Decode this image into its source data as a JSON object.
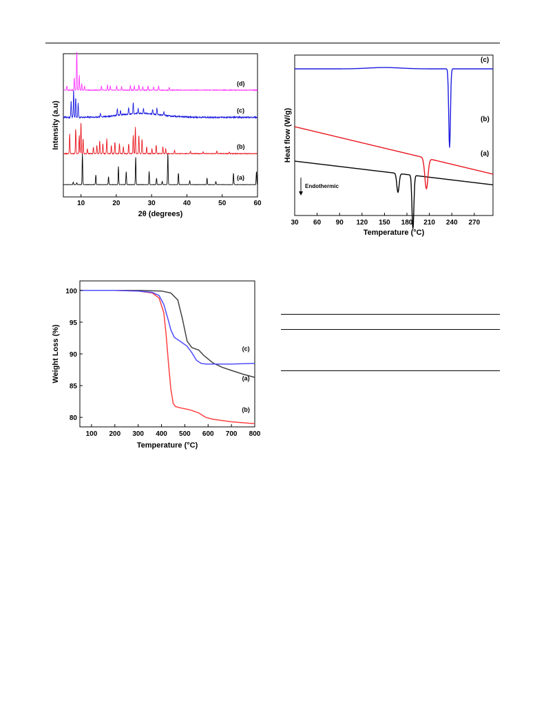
{
  "chart_data": [
    {
      "type": "line",
      "xlabel": "2θ (degrees)",
      "ylabel": "Intensity (a.u)",
      "xlim": [
        5,
        60
      ],
      "xticks": [
        10,
        20,
        30,
        40,
        50,
        60
      ],
      "grid": false,
      "offsets": [
        0,
        1,
        2,
        3
      ],
      "series": [
        {
          "name": "(a)",
          "color": "#000000",
          "baseline": 0.08,
          "noise": 0.004,
          "peaks": [
            [
              7.8,
              0.08
            ],
            [
              8.8,
              0.06
            ],
            [
              10.4,
              0.95
            ],
            [
              14.2,
              0.3
            ],
            [
              17.8,
              0.25
            ],
            [
              20.6,
              0.55
            ],
            [
              22.8,
              0.4
            ],
            [
              25.5,
              0.85
            ],
            [
              29.3,
              0.4
            ],
            [
              31.4,
              0.2
            ],
            [
              33.0,
              0.1
            ],
            [
              34.6,
              0.95
            ],
            [
              37.6,
              0.35
            ],
            [
              40.8,
              0.12
            ],
            [
              45.7,
              0.2
            ],
            [
              48.2,
              0.1
            ],
            [
              53.2,
              0.35
            ],
            [
              59.7,
              0.4
            ]
          ]
        },
        {
          "name": "(b)",
          "color": "#e8141c",
          "baseline": 0.06,
          "noise": 0.01,
          "peaks": [
            [
              6.8,
              0.6
            ],
            [
              8.5,
              0.75
            ],
            [
              9.5,
              0.55
            ],
            [
              10.0,
              0.95
            ],
            [
              10.6,
              0.45
            ],
            [
              11.8,
              0.15
            ],
            [
              13.5,
              0.2
            ],
            [
              14.5,
              0.25
            ],
            [
              15.3,
              0.4
            ],
            [
              16.2,
              0.3
            ],
            [
              17.3,
              0.45
            ],
            [
              18.6,
              0.25
            ],
            [
              19.6,
              0.35
            ],
            [
              20.9,
              0.3
            ],
            [
              22.0,
              0.2
            ],
            [
              23.5,
              0.3
            ],
            [
              24.8,
              0.55
            ],
            [
              25.4,
              0.8
            ],
            [
              26.4,
              0.55
            ],
            [
              27.3,
              0.45
            ],
            [
              28.6,
              0.2
            ],
            [
              30.1,
              0.15
            ],
            [
              31.3,
              0.25
            ],
            [
              33.2,
              0.2
            ],
            [
              34.0,
              0.15
            ],
            [
              36.5,
              0.1
            ],
            [
              41.0,
              0.08
            ],
            [
              44.6,
              0.06
            ],
            [
              48.5,
              0.08
            ],
            [
              52.0,
              0.05
            ]
          ]
        },
        {
          "name": "(c)",
          "color": "#1a1ae0",
          "baseline": 0.2,
          "noise": 0.02,
          "peaks": [
            [
              7.2,
              0.5
            ],
            [
              7.9,
              0.85
            ],
            [
              8.5,
              0.6
            ],
            [
              9.2,
              0.45
            ],
            [
              15.5,
              0.1
            ],
            [
              20.3,
              0.2
            ],
            [
              21.2,
              0.15
            ],
            [
              23.5,
              0.2
            ],
            [
              24.8,
              0.35
            ],
            [
              26.2,
              0.15
            ],
            [
              27.7,
              0.15
            ],
            [
              30.3,
              0.15
            ],
            [
              31.5,
              0.2
            ],
            [
              33.5,
              0.1
            ]
          ]
        },
        {
          "name": "(d)",
          "color": "#ff33ff",
          "baseline": 0.05,
          "noise": 0.008,
          "peaks": [
            [
              6.0,
              0.1
            ],
            [
              8.1,
              0.3
            ],
            [
              8.8,
              1.0
            ],
            [
              9.5,
              0.35
            ],
            [
              10.2,
              0.15
            ],
            [
              11.0,
              0.1
            ],
            [
              15.8,
              0.1
            ],
            [
              17.5,
              0.12
            ],
            [
              18.3,
              0.1
            ],
            [
              20.1,
              0.1
            ],
            [
              21.5,
              0.08
            ],
            [
              24.0,
              0.12
            ],
            [
              25.1,
              0.1
            ],
            [
              26.4,
              0.12
            ],
            [
              27.5,
              0.08
            ],
            [
              29.0,
              0.1
            ],
            [
              30.6,
              0.08
            ],
            [
              32.0,
              0.1
            ],
            [
              35.0,
              0.06
            ]
          ]
        }
      ]
    },
    {
      "type": "line",
      "xlabel": "Temperature (°C)",
      "ylabel": "Heat flow (W/g)",
      "xlim": [
        30,
        295
      ],
      "xticks": [
        30,
        60,
        90,
        120,
        150,
        180,
        210,
        240,
        270
      ],
      "grid": false,
      "annotation": "Endothermic",
      "series": [
        {
          "name": "(a)",
          "color": "#000000",
          "baseline": 0.0,
          "slope": 0.01,
          "dips": [
            [
              168,
              0.21,
              2.2
            ],
            [
              188,
              0.6,
              1.8
            ]
          ]
        },
        {
          "name": "(b)",
          "color": "#e8141c",
          "baseline": 0.5,
          "slope": 0.02,
          "dips": [
            [
              206,
              0.34,
              3.0
            ]
          ]
        },
        {
          "name": "(c)",
          "color": "#1a1ae0",
          "baseline": 1.3,
          "slope": 0.0,
          "dips": [
            [
              237,
              0.88,
              1.6
            ]
          ]
        }
      ]
    },
    {
      "type": "line",
      "xlabel": "Temperature (°C)",
      "ylabel": "Weight Loss (%)",
      "xlim": [
        50,
        800
      ],
      "ylim": [
        78.5,
        101.5
      ],
      "xticks": [
        100,
        200,
        300,
        400,
        500,
        600,
        700,
        800
      ],
      "yticks": [
        80,
        85,
        90,
        95,
        100
      ],
      "grid": false,
      "series": [
        {
          "name": "(a)",
          "color": "#404040",
          "x": [
            50,
            200,
            300,
            400,
            440,
            470,
            490,
            510,
            530,
            560,
            580,
            620,
            660,
            700,
            750,
            800
          ],
          "y": [
            100,
            100,
            100,
            99.9,
            99.6,
            98.5,
            95.5,
            92.0,
            91.0,
            90.6,
            89.8,
            88.6,
            87.9,
            87.4,
            86.8,
            86.3
          ]
        },
        {
          "name": "(b)",
          "color": "#ff4040",
          "x": [
            50,
            200,
            300,
            360,
            390,
            410,
            420,
            430,
            440,
            450,
            460,
            480,
            520,
            560,
            590,
            620,
            700,
            800
          ],
          "y": [
            100,
            100,
            99.9,
            99.6,
            98.8,
            96.5,
            93.0,
            88.5,
            84.5,
            82.2,
            81.7,
            81.5,
            81.2,
            80.7,
            80.0,
            79.7,
            79.3,
            79.0
          ]
        },
        {
          "name": "(c)",
          "color": "#4d4dff",
          "x": [
            50,
            200,
            300,
            360,
            390,
            410,
            430,
            440,
            455,
            480,
            510,
            530,
            550,
            570,
            590,
            650,
            700,
            800
          ],
          "y": [
            100,
            100,
            99.9,
            99.7,
            99.2,
            97.8,
            95.2,
            93.8,
            92.6,
            92.0,
            91.2,
            90.2,
            89.0,
            88.5,
            88.4,
            88.4,
            88.4,
            88.5
          ]
        }
      ],
      "labels": [
        {
          "text": "(c)",
          "x": 762,
          "y": 90.5
        },
        {
          "text": "(a)",
          "x": 762,
          "y": 85.8
        },
        {
          "text": "(b)",
          "x": 762,
          "y": 80.9
        }
      ]
    }
  ]
}
